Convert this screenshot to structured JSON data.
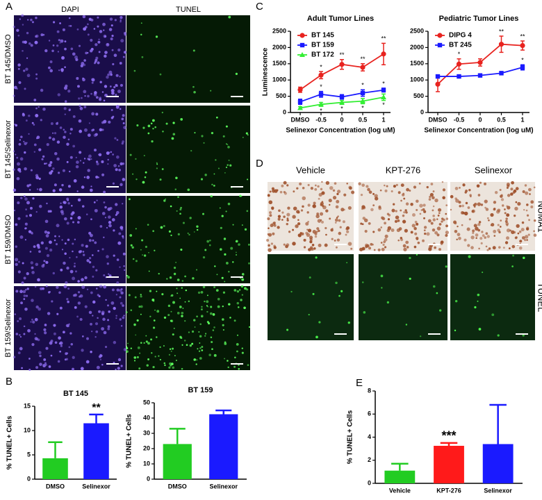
{
  "panel_labels": [
    "A",
    "B",
    "C",
    "D",
    "E"
  ],
  "panel_a": {
    "columns": [
      "DAPI",
      "TUNEL"
    ],
    "rows": [
      "BT 145/DMSO",
      "BT 145/Selinexor",
      "BT 159/DMSO",
      "BT 159/Selinexor"
    ]
  },
  "panel_d": {
    "columns": [
      "Vehicle",
      "KPT-276",
      "Selinexor"
    ],
    "rows": [
      "NUMA1",
      "TUNEL"
    ]
  },
  "chart_data": [
    {
      "type": "bar",
      "title": "BT 145",
      "y_label": "% TUNEL+ Cells",
      "categories": [
        "DMSO",
        "Selinexor"
      ],
      "values": [
        4.3,
        11.5
      ],
      "errors": [
        3.3,
        1.8
      ],
      "colors": [
        "#22cc22",
        "#1a1aff"
      ],
      "annotations": [
        null,
        "**"
      ],
      "ylim": [
        0,
        15
      ],
      "yticks": [
        0,
        5,
        10,
        15
      ]
    },
    {
      "type": "bar",
      "title": "BT 159",
      "y_label": "% TUNEL+ Cells",
      "categories": [
        "DMSO",
        "Selinexor"
      ],
      "values": [
        23,
        42.5
      ],
      "errors": [
        10,
        2.5
      ],
      "colors": [
        "#22cc22",
        "#1a1aff"
      ],
      "annotations": [
        null,
        null
      ],
      "ylim": [
        0,
        50
      ],
      "yticks": [
        0,
        10,
        20,
        30,
        40,
        50
      ]
    },
    {
      "type": "line",
      "title": "Adult Tumor Lines",
      "x_label": "Selinexor Concentration (log uM)",
      "y_label": "Luminescence",
      "categories": [
        "DMSO",
        "-0.5",
        "0",
        "0.5",
        "1"
      ],
      "ylim": [
        0,
        2500
      ],
      "yticks": [
        0,
        500,
        1000,
        1500,
        2000,
        2500
      ],
      "series": [
        {
          "name": "BT 145",
          "color": "#e8231f",
          "marker": "circle",
          "values": [
            700,
            1150,
            1480,
            1390,
            1800
          ],
          "errors": [
            80,
            110,
            150,
            110,
            330
          ],
          "annotations": [
            null,
            "*",
            "**",
            "**",
            "**"
          ]
        },
        {
          "name": "BT 159",
          "color": "#1a1aff",
          "marker": "square",
          "values": [
            330,
            560,
            480,
            600,
            690
          ],
          "errors": [
            80,
            90,
            70,
            100,
            60
          ],
          "annotations": [
            null,
            "*",
            null,
            "*",
            "*"
          ]
        },
        {
          "name": "BT 172",
          "color": "#33ee33",
          "marker": "triangle",
          "values": [
            140,
            250,
            310,
            350,
            470
          ],
          "errors": [
            40,
            60,
            60,
            80,
            100
          ],
          "annotations": [
            null,
            "*",
            "*",
            "*",
            "*"
          ],
          "annotation_side": "below"
        }
      ]
    },
    {
      "type": "line",
      "title": "Pediatric Tumor Lines",
      "x_label": "Selinexor Concentration (log uM)",
      "categories": [
        "DMSO",
        "-0.5",
        "0",
        "0.5",
        "1"
      ],
      "ylim": [
        0,
        2500
      ],
      "yticks": [
        0,
        500,
        1000,
        1500,
        2000,
        2500
      ],
      "series": [
        {
          "name": "DIPG 4",
          "color": "#e8231f",
          "marker": "circle",
          "values": [
            870,
            1490,
            1540,
            2100,
            2060
          ],
          "errors": [
            230,
            160,
            110,
            250,
            140
          ],
          "annotations": [
            null,
            "*",
            null,
            "**",
            "**"
          ]
        },
        {
          "name": "BT 245",
          "color": "#1a1aff",
          "marker": "square",
          "values": [
            1110,
            1110,
            1140,
            1210,
            1390
          ],
          "errors": [
            50,
            40,
            40,
            50,
            80
          ],
          "annotations": [
            null,
            null,
            null,
            null,
            "*"
          ]
        }
      ]
    },
    {
      "type": "bar",
      "y_label": "% TUNEL+ Cells",
      "categories": [
        "Vehicle",
        "KPT-276",
        "Selinexor"
      ],
      "values": [
        1.1,
        3.25,
        3.4
      ],
      "errors": [
        0.6,
        0.25,
        3.4
      ],
      "colors": [
        "#22cc22",
        "#ff1a1a",
        "#1a1aff"
      ],
      "annotations": [
        null,
        "***",
        null
      ],
      "ylim": [
        0,
        8
      ],
      "yticks": [
        0,
        2,
        4,
        6,
        8
      ],
      "annotation_size": 18
    }
  ]
}
